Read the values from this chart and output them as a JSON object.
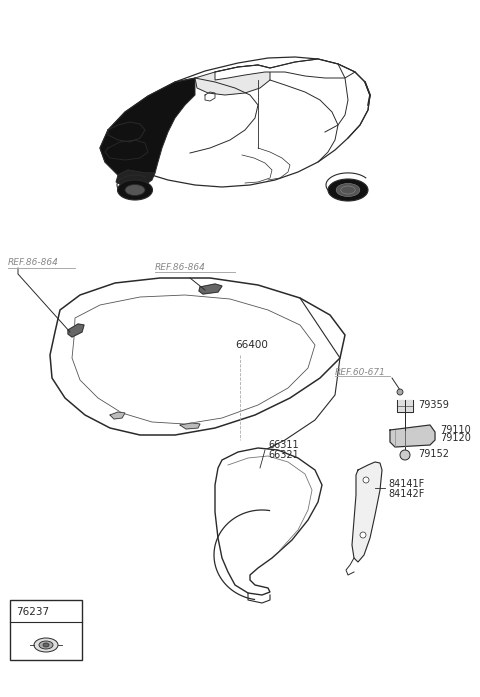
{
  "bg_color": "#ffffff",
  "fig_width": 4.8,
  "fig_height": 6.97,
  "dpi": 100,
  "labels": {
    "ref_86_864_left": "REF.86-864",
    "ref_86_864_center": "REF.86-864",
    "ref_60_671": "REF.60-671",
    "part_66400": "66400",
    "part_66311": "66311",
    "part_66321": "66321",
    "part_79359": "79359",
    "part_79110": "79110",
    "part_79120": "79120",
    "part_79152": "79152",
    "part_84141F": "84141F",
    "part_84142F": "84142F",
    "part_76237": "76237"
  },
  "line_color": "#2a2a2a",
  "text_color": "#2a2a2a",
  "ref_color": "#888888",
  "ref_line_color": "#aaaaaa"
}
